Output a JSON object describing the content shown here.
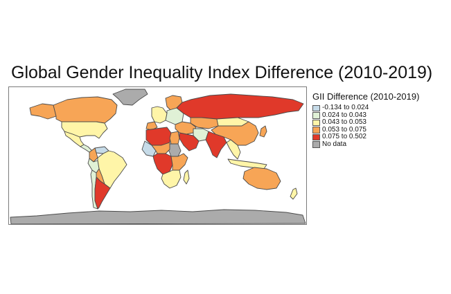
{
  "title": "Global Gender Inequality Index Difference (2010-2019)",
  "legend": {
    "title": "GII Difference (2010-2019)",
    "items": [
      {
        "label": "-0.134 to 0.024",
        "color": "#c6dbe8"
      },
      {
        "label": "0.024 to 0.043",
        "color": "#e0f1d6"
      },
      {
        "label": "0.043 to 0.053",
        "color": "#fff5a8"
      },
      {
        "label": "0.053 to 0.075",
        "color": "#f7a556"
      },
      {
        "label": "0.075 to 0.502",
        "color": "#e0392a"
      },
      {
        "label": "No data",
        "color": "#ababab"
      }
    ]
  },
  "map": {
    "border_color": "#4a4a4a",
    "regions": [
      {
        "name": "Antarctica",
        "class": "No data"
      },
      {
        "name": "Greenland",
        "class": "No data"
      },
      {
        "name": "Canada",
        "class": "0.053 to 0.075"
      },
      {
        "name": "Alaska",
        "class": "0.053 to 0.075"
      },
      {
        "name": "United States",
        "class": "0.043 to 0.053"
      },
      {
        "name": "Mexico",
        "class": "0.043 to 0.053"
      },
      {
        "name": "Central America",
        "class": "0.024 to 0.043"
      },
      {
        "name": "Colombia",
        "class": "0.053 to 0.075"
      },
      {
        "name": "Venezuela",
        "class": "-0.134 to 0.024"
      },
      {
        "name": "Peru",
        "class": "0.024 to 0.043"
      },
      {
        "name": "Brazil",
        "class": "0.043 to 0.053"
      },
      {
        "name": "Bolivia",
        "class": "0.053 to 0.075"
      },
      {
        "name": "Chile",
        "class": "0.024 to 0.043"
      },
      {
        "name": "Argentina",
        "class": "0.075 to 0.502"
      },
      {
        "name": "Russia",
        "class": "0.075 to 0.502"
      },
      {
        "name": "Scandinavia",
        "class": "0.053 to 0.075"
      },
      {
        "name": "Western Europe",
        "class": "0.043 to 0.053"
      },
      {
        "name": "Spain",
        "class": "0.053 to 0.075"
      },
      {
        "name": "Eastern Europe",
        "class": "0.024 to 0.043"
      },
      {
        "name": "Kazakhstan",
        "class": "0.053 to 0.075"
      },
      {
        "name": "Mongolia",
        "class": "0.043 to 0.053"
      },
      {
        "name": "China",
        "class": "0.053 to 0.075"
      },
      {
        "name": "Middle East",
        "class": "0.053 to 0.075"
      },
      {
        "name": "Iran",
        "class": "0.024 to 0.043"
      },
      {
        "name": "Saudi Arabia",
        "class": "0.075 to 0.502"
      },
      {
        "name": "India",
        "class": "0.075 to 0.502"
      },
      {
        "name": "Southeast Asia",
        "class": "0.043 to 0.053"
      },
      {
        "name": "Indonesia",
        "class": "0.043 to 0.053"
      },
      {
        "name": "Japan",
        "class": "0.053 to 0.075"
      },
      {
        "name": "Australia",
        "class": "0.053 to 0.075"
      },
      {
        "name": "New Zealand",
        "class": "0.043 to 0.053"
      },
      {
        "name": "North Africa West",
        "class": "0.075 to 0.502"
      },
      {
        "name": "Egypt",
        "class": "0.053 to 0.075"
      },
      {
        "name": "Sudan",
        "class": "No data"
      },
      {
        "name": "West Africa",
        "class": "-0.134 to 0.024"
      },
      {
        "name": "Sahel",
        "class": "0.053 to 0.075"
      },
      {
        "name": "Central Africa",
        "class": "0.075 to 0.502"
      },
      {
        "name": "East Africa",
        "class": "0.053 to 0.075"
      },
      {
        "name": "Southern Africa",
        "class": "0.043 to 0.053"
      },
      {
        "name": "Madagascar",
        "class": "0.043 to 0.053"
      }
    ]
  }
}
